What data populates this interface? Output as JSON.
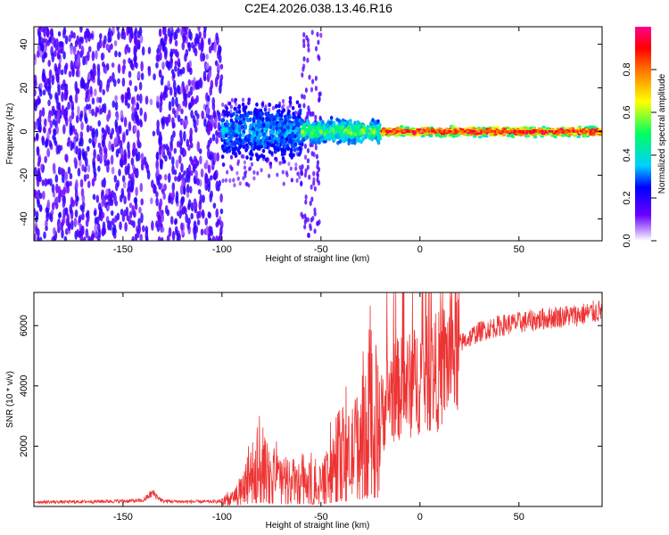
{
  "chart_data": [
    {
      "type": "heatmap",
      "title": "C2E4.2026.038.13.46.R16",
      "xlabel": "Height of straight line (km)",
      "ylabel": "Frequency (Hz)",
      "xlim": [
        -195,
        92
      ],
      "ylim": [
        -50,
        48
      ],
      "xticks": [
        -150,
        -100,
        -50,
        0,
        50
      ],
      "xtick_labels": [
        "-150",
        "-100",
        "-50",
        "0",
        "50"
      ],
      "yticks": [
        -40,
        -20,
        0,
        20,
        40
      ],
      "ytick_labels": [
        "-40",
        "-20",
        "0",
        "20",
        "40"
      ],
      "colorbar": {
        "label": "Normalized spectral amplitude",
        "range": [
          0,
          1
        ],
        "ticks": [
          0.0,
          0.2,
          0.4,
          0.6,
          0.8
        ],
        "tick_labels": [
          "0.0",
          "0.2",
          "0.4",
          "0.6",
          "0.8"
        ],
        "colormap": [
          "#ffffff",
          "#6a00ff",
          "#0000ff",
          "#00d0ff",
          "#00ff60",
          "#ffff00",
          "#ff7000",
          "#ff0000",
          "#ff0090"
        ]
      },
      "description_regions": [
        {
          "x_range": [
            -195,
            -100
          ],
          "freq_range": [
            -50,
            48
          ],
          "amplitude": 0.08
        },
        {
          "x_range": [
            -100,
            -60
          ],
          "freq_range": [
            -12,
            12
          ],
          "amplitude": 0.3
        },
        {
          "x_range": [
            -60,
            -20
          ],
          "freq_range": [
            -5,
            5
          ],
          "amplitude": 0.5
        },
        {
          "x_range": [
            -20,
            92
          ],
          "freq_range": [
            -2,
            2
          ],
          "amplitude": 0.95
        }
      ]
    },
    {
      "type": "line",
      "xlabel": "Height of straight line (km)",
      "ylabel": "SNR (10 * v/v)",
      "xlim": [
        -195,
        92
      ],
      "ylim": [
        0,
        7100
      ],
      "xticks": [
        -150,
        -100,
        -50,
        0,
        50
      ],
      "xtick_labels": [
        "-150",
        "-100",
        "-50",
        "0",
        "50"
      ],
      "yticks": [
        2000,
        4000,
        6000
      ],
      "ytick_labels": [
        "2000",
        "4000",
        "6000"
      ],
      "line_color": "#ee3333",
      "series": [
        {
          "name": "SNR",
          "x": [
            -195,
            -180,
            -160,
            -140,
            -135,
            -130,
            -120,
            -105,
            -100,
            -95,
            -90,
            -85,
            -80,
            -75,
            -70,
            -65,
            -60,
            -55,
            -50,
            -45,
            -40,
            -35,
            -30,
            -25,
            -20,
            -15,
            -10,
            -5,
            0,
            5,
            10,
            15,
            20,
            25,
            30,
            40,
            50,
            60,
            70,
            80,
            92
          ],
          "values": [
            150,
            150,
            170,
            190,
            450,
            180,
            160,
            160,
            170,
            250,
            600,
            1100,
            1300,
            1000,
            900,
            850,
            800,
            750,
            700,
            1200,
            1800,
            1600,
            2400,
            2800,
            3000,
            3800,
            3900,
            4000,
            4300,
            4400,
            4500,
            5000,
            5400,
            5600,
            5800,
            6000,
            6100,
            6200,
            6300,
            6350,
            6500
          ]
        }
      ]
    }
  ]
}
